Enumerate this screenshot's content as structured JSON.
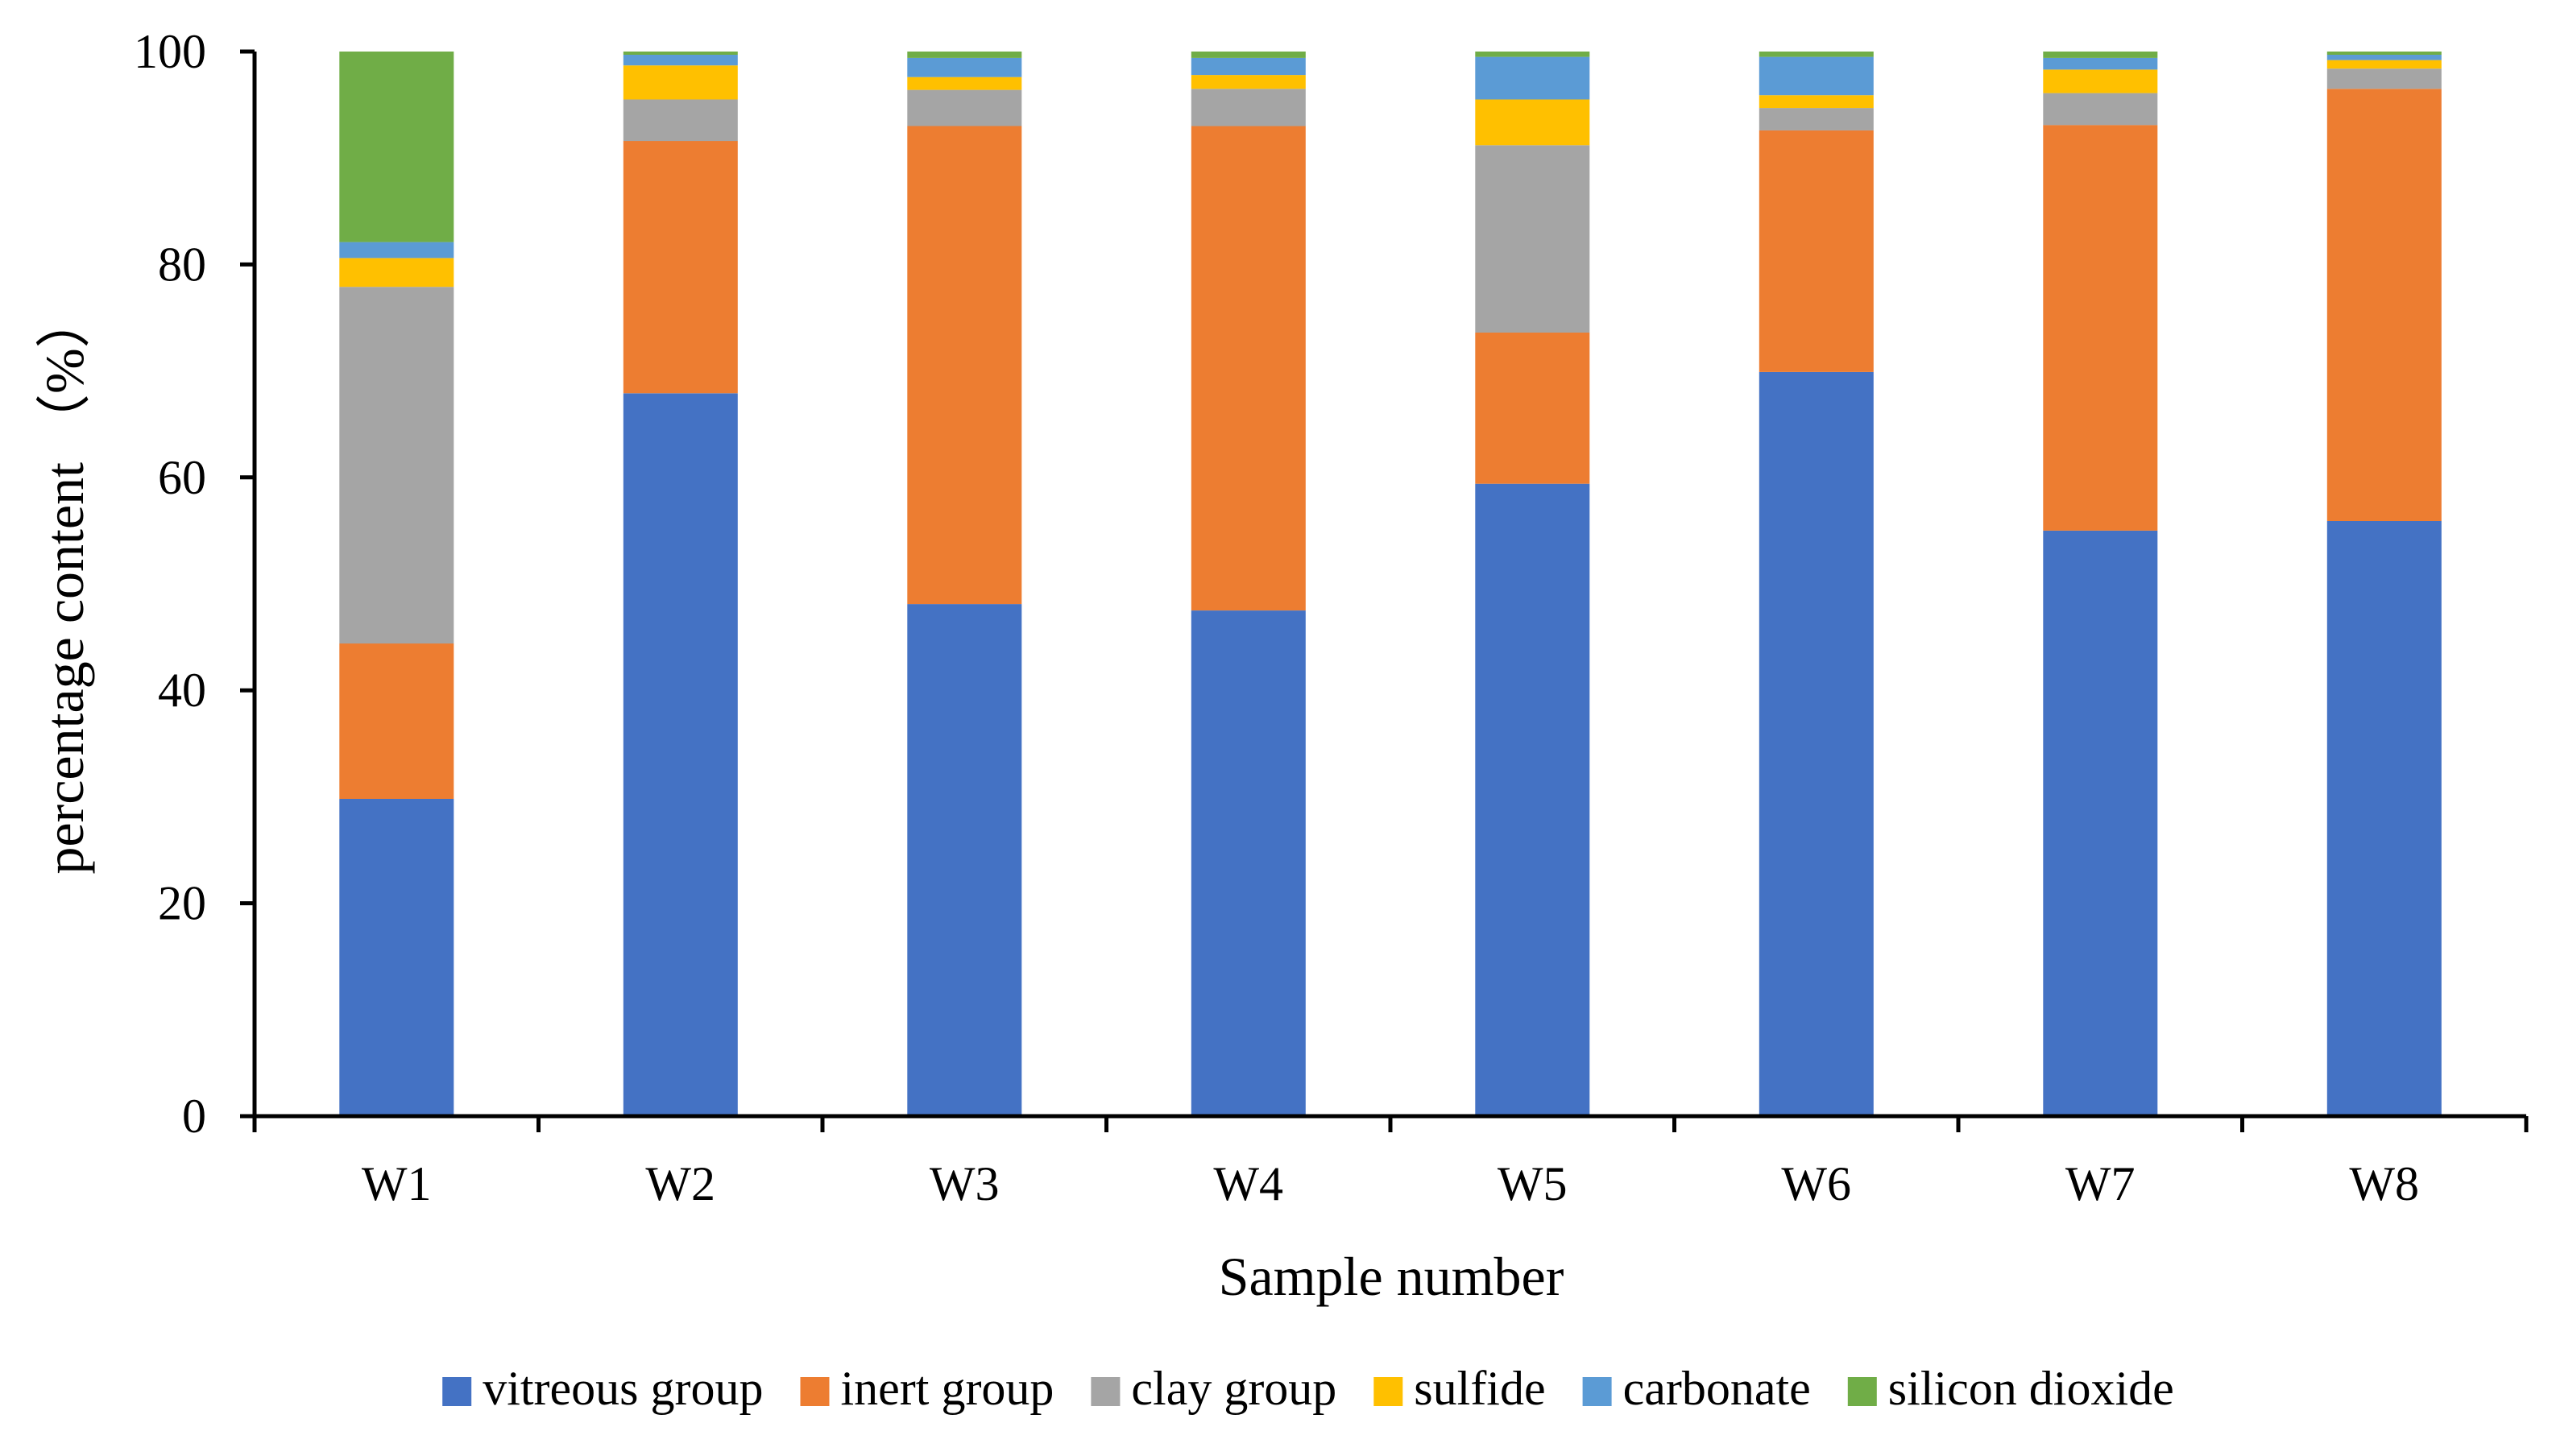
{
  "chart_data": {
    "type": "bar",
    "stacked": true,
    "title": "",
    "xlabel": "Sample number",
    "ylabel": "percentage content （%）",
    "ylim": [
      0,
      100
    ],
    "yticks": [
      0,
      20,
      40,
      60,
      80,
      100
    ],
    "ytick_labels": [
      "0",
      "20",
      "40",
      "60",
      "80",
      "100"
    ],
    "grid": false,
    "legend_position": "bottom",
    "categories": [
      "W1",
      "W2",
      "W3",
      "W4",
      "W5",
      "W6",
      "W7",
      "W8"
    ],
    "series": [
      {
        "name": "vitreous group",
        "color": "#4472C4",
        "values": [
          29.8,
          67.9,
          48.1,
          47.5,
          59.4,
          69.9,
          55.0,
          55.9
        ]
      },
      {
        "name": "inert group",
        "color": "#ED7D31",
        "values": [
          14.6,
          23.7,
          44.9,
          45.5,
          14.2,
          22.7,
          38.1,
          40.6
        ]
      },
      {
        "name": "clay group",
        "color": "#A5A5A5",
        "values": [
          33.5,
          3.9,
          3.4,
          3.5,
          17.6,
          2.1,
          3.0,
          1.9
        ]
      },
      {
        "name": "sulfide",
        "color": "#FFC000",
        "values": [
          2.7,
          3.2,
          1.2,
          1.3,
          4.3,
          1.2,
          2.2,
          0.8
        ]
      },
      {
        "name": "carbonate",
        "color": "#5B9BD5",
        "values": [
          1.5,
          1.0,
          1.8,
          1.6,
          4.0,
          3.6,
          1.1,
          0.5
        ]
      },
      {
        "name": "silicon dioxide",
        "color": "#70AD47",
        "values": [
          17.9,
          0.3,
          0.6,
          0.6,
          0.5,
          0.5,
          0.6,
          0.3
        ]
      }
    ]
  }
}
